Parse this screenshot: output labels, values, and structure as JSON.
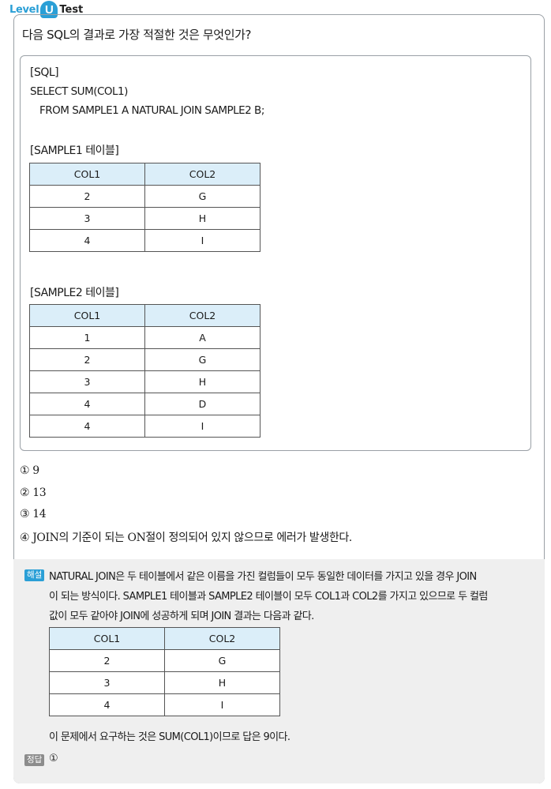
{
  "logo": {
    "level": "Level",
    "up": "Up",
    "test": "Test"
  },
  "question": "다음 SQL의 결과로 가장 적절한 것은 무엇인가?",
  "sql": {
    "label": "[SQL]",
    "line1": "SELECT SUM(COL1)",
    "line2": "FROM SAMPLE1 A NATURAL JOIN SAMPLE2 B;"
  },
  "sample1": {
    "title": "[SAMPLE1 테이블]",
    "headers": [
      "COL1",
      "COL2"
    ],
    "rows": [
      [
        "2",
        "G"
      ],
      [
        "3",
        "H"
      ],
      [
        "4",
        "I"
      ]
    ]
  },
  "sample2": {
    "title": "[SAMPLE2 테이블]",
    "headers": [
      "COL1",
      "COL2"
    ],
    "rows": [
      [
        "1",
        "A"
      ],
      [
        "2",
        "G"
      ],
      [
        "3",
        "H"
      ],
      [
        "4",
        "D"
      ],
      [
        "4",
        "I"
      ]
    ]
  },
  "options": [
    "① 9",
    "② 13",
    "③ 14",
    "④ JOIN의 기준이 되는 ON절이 정의되어 있지 않으므로 에러가 발생한다."
  ],
  "explanation": {
    "badge": "해설",
    "line1": "NATURAL JOIN은 두 테이블에서 같은 이름을 가진 컬럼들이 모두 동일한 데이터를 가지고 있을 경우 JOIN",
    "line2": "이 되는 방식이다. SAMPLE1 테이블과 SAMPLE2 테이블이 모두 COL1과 COL2를 가지고 있으므로 두 컬럼",
    "line3": "값이 모두 같아야 JOIN에 성공하게 되며 JOIN 결과는 다음과 같다.",
    "result_table": {
      "headers": [
        "COL1",
        "COL2"
      ],
      "rows": [
        [
          "2",
          "G"
        ],
        [
          "3",
          "H"
        ],
        [
          "4",
          "I"
        ]
      ]
    },
    "conclusion": "이 문제에서 요구하는 것은 SUM(COL1)이므로 답은 9이다."
  },
  "answer": {
    "badge": "정답",
    "value": "①"
  }
}
